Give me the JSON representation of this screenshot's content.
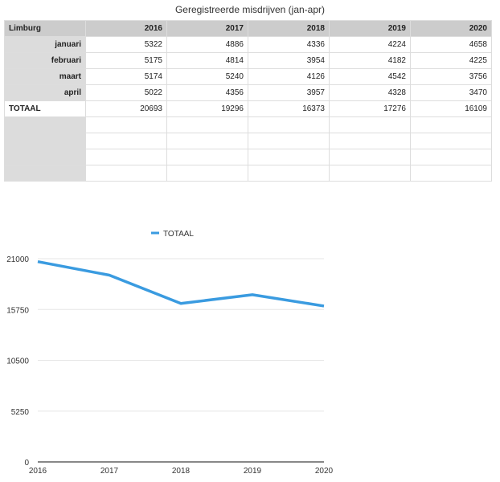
{
  "table": {
    "title": "Geregistreerde misdrijven (jan-apr)",
    "corner": "Limburg",
    "columns": [
      "2016",
      "2017",
      "2018",
      "2019",
      "2020"
    ],
    "rows": [
      {
        "label": "januari",
        "values": [
          "5322",
          "4886",
          "4336",
          "4224",
          "4658"
        ]
      },
      {
        "label": "februari",
        "values": [
          "5175",
          "4814",
          "3954",
          "4182",
          "4225"
        ]
      },
      {
        "label": "maart",
        "values": [
          "5174",
          "5240",
          "4126",
          "4542",
          "3756"
        ]
      },
      {
        "label": "april",
        "values": [
          "5022",
          "4356",
          "3957",
          "4328",
          "3470"
        ]
      },
      {
        "label": "TOTAAL",
        "values": [
          "20693",
          "19296",
          "16373",
          "17276",
          "16109"
        ]
      }
    ],
    "empty_rows": 4
  },
  "chart_data": {
    "type": "line",
    "categories": [
      "2016",
      "2017",
      "2018",
      "2019",
      "2020"
    ],
    "series": [
      {
        "name": "TOTAAL",
        "values": [
          20693,
          19296,
          16373,
          17276,
          16109
        ],
        "color": "#3a9be0"
      }
    ],
    "ylim": [
      0,
      21000
    ],
    "yticks": [
      "0",
      "5250",
      "10500",
      "15750",
      "21000"
    ],
    "grid": true,
    "legend": "top"
  }
}
